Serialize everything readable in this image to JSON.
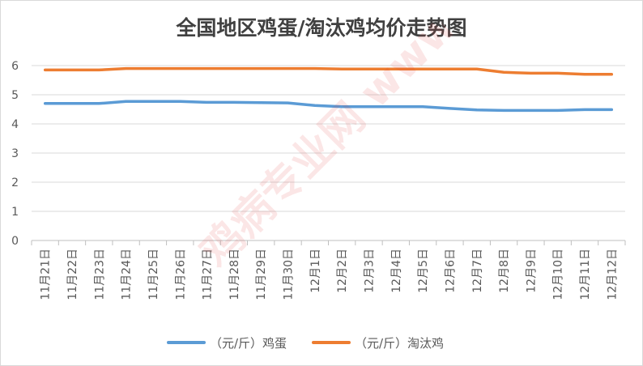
{
  "chart_data": {
    "type": "line",
    "title": "全国地区鸡蛋/淘汰鸡均价走势图",
    "categories": [
      "11月21日",
      "11月22日",
      "11月23日",
      "11月24日",
      "11月25日",
      "11月26日",
      "11月27日",
      "11月28日",
      "11月29日",
      "11月30日",
      "12月1日",
      "12月2日",
      "12月3日",
      "12月4日",
      "12月5日",
      "12月6日",
      "12月7日",
      "12月8日",
      "12月9日",
      "12月10日",
      "12月11日",
      "12月12日"
    ],
    "ylim": [
      0,
      6
    ],
    "yticks": [
      0,
      1,
      2,
      3,
      4,
      5,
      6
    ],
    "grid": "horizontal",
    "legend_position": "bottom",
    "series": [
      {
        "name": "（元/斤）鸡蛋",
        "color": "#5b9bd5",
        "values": [
          4.7,
          4.7,
          4.7,
          4.77,
          4.77,
          4.77,
          4.74,
          4.74,
          4.73,
          4.72,
          4.63,
          4.59,
          4.59,
          4.59,
          4.59,
          4.53,
          4.48,
          4.46,
          4.46,
          4.46,
          4.49,
          4.49
        ]
      },
      {
        "name": "（元/斤）淘汰鸡",
        "color": "#ed7d31",
        "values": [
          5.85,
          5.85,
          5.85,
          5.9,
          5.9,
          5.9,
          5.9,
          5.9,
          5.9,
          5.9,
          5.9,
          5.88,
          5.88,
          5.88,
          5.88,
          5.88,
          5.88,
          5.77,
          5.74,
          5.74,
          5.7,
          5.7
        ]
      }
    ]
  },
  "watermark": "鸡病专业网 www.jbzyw.com"
}
